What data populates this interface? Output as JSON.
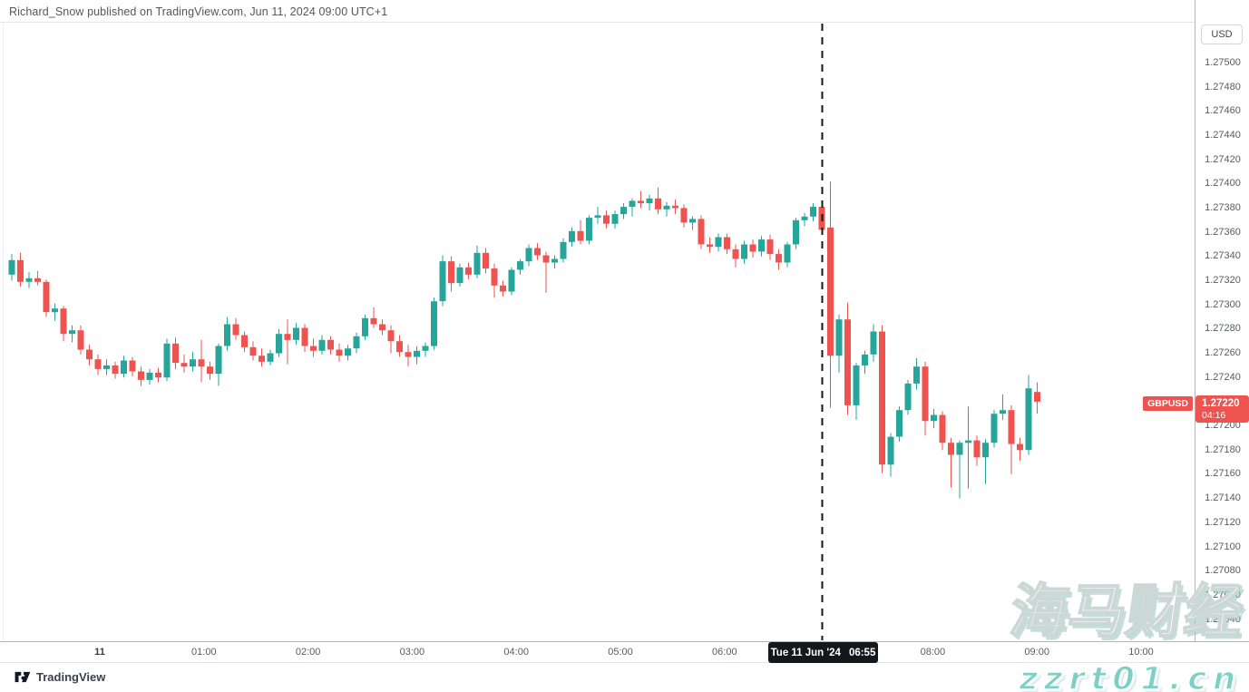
{
  "header": {
    "attribution": "Richard_Snow published on TradingView.com, Jun 11, 2024 09:00 UTC+1"
  },
  "price_scale": {
    "currency_button": "USD",
    "labels": [
      "1.27500",
      "1.27480",
      "1.27460",
      "1.27440",
      "1.27420",
      "1.27400",
      "1.27380",
      "1.27360",
      "1.27340",
      "1.27320",
      "1.27300",
      "1.27280",
      "1.27260",
      "1.27240",
      "1.27200",
      "1.27180",
      "1.27160",
      "1.27140",
      "1.27120",
      "1.27100",
      "1.27080",
      "1.27060",
      "1.27040"
    ],
    "symbol_badge": "GBPUSD",
    "last_price": "1.27220",
    "countdown": "04:16"
  },
  "time_scale": {
    "labels": [
      {
        "text": "11",
        "hour": 0,
        "emphasis": true
      },
      {
        "text": "01:00",
        "hour": 1,
        "emphasis": false
      },
      {
        "text": "02:00",
        "hour": 2,
        "emphasis": false
      },
      {
        "text": "03:00",
        "hour": 3,
        "emphasis": false
      },
      {
        "text": "04:00",
        "hour": 4,
        "emphasis": false
      },
      {
        "text": "05:00",
        "hour": 5,
        "emphasis": false
      },
      {
        "text": "06:00",
        "hour": 6,
        "emphasis": false
      },
      {
        "text": "08:00",
        "hour": 8,
        "emphasis": false
      },
      {
        "text": "09:00",
        "hour": 9,
        "emphasis": false
      },
      {
        "text": "10:00",
        "hour": 10,
        "emphasis": false
      }
    ],
    "tooltip": {
      "date": "Tue 11 Jun '24",
      "time": "06:55"
    }
  },
  "footer": {
    "brand": "TradingView"
  },
  "watermark": {
    "line1": "海马财经",
    "line2": "zzrt01.cn"
  },
  "colors": {
    "up": "#26a69a",
    "down": "#ef5350",
    "badge_bg": "#ef5350",
    "tooltip_bg": "#15171c",
    "dashed_line": "#14161a",
    "axis_border": "#b2b5be",
    "watermark_teal": "#7ed0c5"
  },
  "chart_data": {
    "type": "candlestick",
    "symbol": "GBPUSD",
    "quote_currency": "USD",
    "interval": "5m",
    "last_price": 1.2722,
    "price_axis": {
      "visible_min": 1.27022,
      "visible_max": 1.27552,
      "tick_step": 0.0002
    },
    "annotations": {
      "vertical_dashed_line_time": "06:55"
    },
    "candles": [
      [
        1.27325,
        1.27342,
        1.2732,
        1.27337
      ],
      [
        1.27337,
        1.27343,
        1.27315,
        1.27319
      ],
      [
        1.27319,
        1.27327,
        1.27314,
        1.27322
      ],
      [
        1.27322,
        1.27328,
        1.27316,
        1.27319
      ],
      [
        1.27319,
        1.27321,
        1.2729,
        1.27294
      ],
      [
        1.27294,
        1.27301,
        1.27287,
        1.27297
      ],
      [
        1.27297,
        1.27299,
        1.2727,
        1.27276
      ],
      [
        1.27276,
        1.27283,
        1.27269,
        1.27279
      ],
      [
        1.27279,
        1.27283,
        1.27259,
        1.27263
      ],
      [
        1.27263,
        1.27267,
        1.2725,
        1.27255
      ],
      [
        1.27255,
        1.27259,
        1.27242,
        1.27247
      ],
      [
        1.27247,
        1.27255,
        1.27242,
        1.2725
      ],
      [
        1.2725,
        1.27253,
        1.27239,
        1.27243
      ],
      [
        1.27243,
        1.27258,
        1.2724,
        1.27254
      ],
      [
        1.27254,
        1.27257,
        1.27241,
        1.27245
      ],
      [
        1.27245,
        1.27249,
        1.27233,
        1.27238
      ],
      [
        1.27238,
        1.27247,
        1.27234,
        1.27244
      ],
      [
        1.27244,
        1.27248,
        1.27236,
        1.2724
      ],
      [
        1.2724,
        1.27272,
        1.27237,
        1.27268
      ],
      [
        1.27268,
        1.27273,
        1.27247,
        1.27252
      ],
      [
        1.27252,
        1.27259,
        1.27244,
        1.27249
      ],
      [
        1.27249,
        1.27261,
        1.27245,
        1.27255
      ],
      [
        1.27255,
        1.27271,
        1.27236,
        1.27249
      ],
      [
        1.27249,
        1.27253,
        1.27238,
        1.27243
      ],
      [
        1.27243,
        1.27268,
        1.27233,
        1.27266
      ],
      [
        1.27266,
        1.2729,
        1.27262,
        1.27284
      ],
      [
        1.27284,
        1.27289,
        1.27271,
        1.27275
      ],
      [
        1.27275,
        1.27278,
        1.27261,
        1.27265
      ],
      [
        1.27265,
        1.2727,
        1.27254,
        1.27258
      ],
      [
        1.27258,
        1.27264,
        1.27249,
        1.27253
      ],
      [
        1.27253,
        1.27263,
        1.2725,
        1.2726
      ],
      [
        1.2726,
        1.2728,
        1.27257,
        1.27276
      ],
      [
        1.27276,
        1.27288,
        1.27251,
        1.27271
      ],
      [
        1.27271,
        1.27285,
        1.27267,
        1.27281
      ],
      [
        1.27281,
        1.27284,
        1.27261,
        1.27266
      ],
      [
        1.27266,
        1.27272,
        1.27257,
        1.27262
      ],
      [
        1.27262,
        1.27275,
        1.27259,
        1.27271
      ],
      [
        1.27271,
        1.27274,
        1.27259,
        1.27263
      ],
      [
        1.27263,
        1.27268,
        1.27253,
        1.27258
      ],
      [
        1.27258,
        1.27267,
        1.27254,
        1.27264
      ],
      [
        1.27264,
        1.27277,
        1.2726,
        1.27274
      ],
      [
        1.27274,
        1.27292,
        1.27271,
        1.27289
      ],
      [
        1.27289,
        1.27298,
        1.27281,
        1.27284
      ],
      [
        1.27284,
        1.27288,
        1.27275,
        1.27279
      ],
      [
        1.27279,
        1.27283,
        1.2726,
        1.2727
      ],
      [
        1.2727,
        1.27275,
        1.27257,
        1.27261
      ],
      [
        1.27261,
        1.27267,
        1.27249,
        1.27257
      ],
      [
        1.27257,
        1.27266,
        1.27251,
        1.27262
      ],
      [
        1.27262,
        1.27269,
        1.27257,
        1.27266
      ],
      [
        1.27266,
        1.27306,
        1.27263,
        1.27303
      ],
      [
        1.27303,
        1.27341,
        1.27299,
        1.27336
      ],
      [
        1.27336,
        1.2734,
        1.27311,
        1.27318
      ],
      [
        1.27318,
        1.27334,
        1.27315,
        1.27331
      ],
      [
        1.27331,
        1.27335,
        1.27321,
        1.27325
      ],
      [
        1.27325,
        1.27349,
        1.27322,
        1.27343
      ],
      [
        1.27343,
        1.27347,
        1.27326,
        1.2733
      ],
      [
        1.2733,
        1.27334,
        1.27306,
        1.27316
      ],
      [
        1.27316,
        1.2732,
        1.27307,
        1.27311
      ],
      [
        1.27311,
        1.27331,
        1.27308,
        1.27329
      ],
      [
        1.27329,
        1.27338,
        1.27325,
        1.27336
      ],
      [
        1.27336,
        1.2735,
        1.27332,
        1.27347
      ],
      [
        1.27347,
        1.27351,
        1.27337,
        1.27341
      ],
      [
        1.27341,
        1.27344,
        1.2731,
        1.27335
      ],
      [
        1.27335,
        1.27341,
        1.2733,
        1.27338
      ],
      [
        1.27338,
        1.27355,
        1.27335,
        1.27352
      ],
      [
        1.27352,
        1.27364,
        1.27348,
        1.27361
      ],
      [
        1.27361,
        1.2737,
        1.2735,
        1.27353
      ],
      [
        1.27353,
        1.27374,
        1.2735,
        1.27372
      ],
      [
        1.27372,
        1.27381,
        1.27367,
        1.27374
      ],
      [
        1.27374,
        1.27378,
        1.27363,
        1.27367
      ],
      [
        1.27367,
        1.27378,
        1.27363,
        1.27375
      ],
      [
        1.27375,
        1.27384,
        1.27371,
        1.27381
      ],
      [
        1.27381,
        1.27388,
        1.27373,
        1.27386
      ],
      [
        1.27386,
        1.27394,
        1.2738,
        1.27384
      ],
      [
        1.27384,
        1.27391,
        1.27378,
        1.27388
      ],
      [
        1.27388,
        1.27397,
        1.27375,
        1.27379
      ],
      [
        1.27379,
        1.27385,
        1.27373,
        1.27382
      ],
      [
        1.27382,
        1.27387,
        1.27375,
        1.2738
      ],
      [
        1.2738,
        1.27383,
        1.27364,
        1.27368
      ],
      [
        1.27368,
        1.27373,
        1.27362,
        1.27371
      ],
      [
        1.27371,
        1.27374,
        1.27346,
        1.2735
      ],
      [
        1.2735,
        1.27356,
        1.27343,
        1.27348
      ],
      [
        1.27348,
        1.27359,
        1.27344,
        1.27356
      ],
      [
        1.27356,
        1.27359,
        1.27342,
        1.27346
      ],
      [
        1.27346,
        1.2735,
        1.27331,
        1.27338
      ],
      [
        1.27338,
        1.27353,
        1.27334,
        1.2735
      ],
      [
        1.2735,
        1.27354,
        1.27339,
        1.27344
      ],
      [
        1.27344,
        1.27357,
        1.2734,
        1.27354
      ],
      [
        1.27354,
        1.27358,
        1.27337,
        1.27342
      ],
      [
        1.27342,
        1.27346,
        1.27329,
        1.27335
      ],
      [
        1.27335,
        1.27352,
        1.27331,
        1.2735
      ],
      [
        1.2735,
        1.27372,
        1.27346,
        1.2737
      ],
      [
        1.2737,
        1.27376,
        1.27365,
        1.27373
      ],
      [
        1.27373,
        1.27384,
        1.27369,
        1.27381
      ],
      [
        1.27381,
        1.27386,
        1.27358,
        1.27362
      ],
      [
        1.27364,
        1.27402,
        1.27215,
        1.27258
      ],
      [
        1.27258,
        1.27292,
        1.27244,
        1.27288
      ],
      [
        1.27288,
        1.27302,
        1.27209,
        1.27217
      ],
      [
        1.27217,
        1.27252,
        1.27205,
        1.2725
      ],
      [
        1.2725,
        1.27262,
        1.27243,
        1.27259
      ],
      [
        1.27259,
        1.27284,
        1.27253,
        1.27278
      ],
      [
        1.27278,
        1.27283,
        1.27161,
        1.27168
      ],
      [
        1.27168,
        1.27194,
        1.27158,
        1.27191
      ],
      [
        1.27191,
        1.27216,
        1.27187,
        1.27213
      ],
      [
        1.27213,
        1.27238,
        1.27209,
        1.27235
      ],
      [
        1.27235,
        1.27256,
        1.2723,
        1.27249
      ],
      [
        1.27249,
        1.27253,
        1.27192,
        1.27204
      ],
      [
        1.27204,
        1.27214,
        1.27198,
        1.27209
      ],
      [
        1.27209,
        1.27212,
        1.2718,
        1.27186
      ],
      [
        1.27186,
        1.2719,
        1.27149,
        1.27176
      ],
      [
        1.27176,
        1.27188,
        1.2714,
        1.27186
      ],
      [
        1.27186,
        1.27216,
        1.27148,
        1.27188
      ],
      [
        1.27188,
        1.27192,
        1.27167,
        1.27174
      ],
      [
        1.27174,
        1.27189,
        1.27152,
        1.27186
      ],
      [
        1.27186,
        1.27213,
        1.27182,
        1.2721
      ],
      [
        1.2721,
        1.27226,
        1.27205,
        1.27213
      ],
      [
        1.27213,
        1.27217,
        1.2716,
        1.27185
      ],
      [
        1.27185,
        1.2719,
        1.27171,
        1.2718
      ],
      [
        1.2718,
        1.27242,
        1.27176,
        1.27231
      ],
      [
        1.27228,
        1.27236,
        1.2721,
        1.2722
      ]
    ]
  }
}
